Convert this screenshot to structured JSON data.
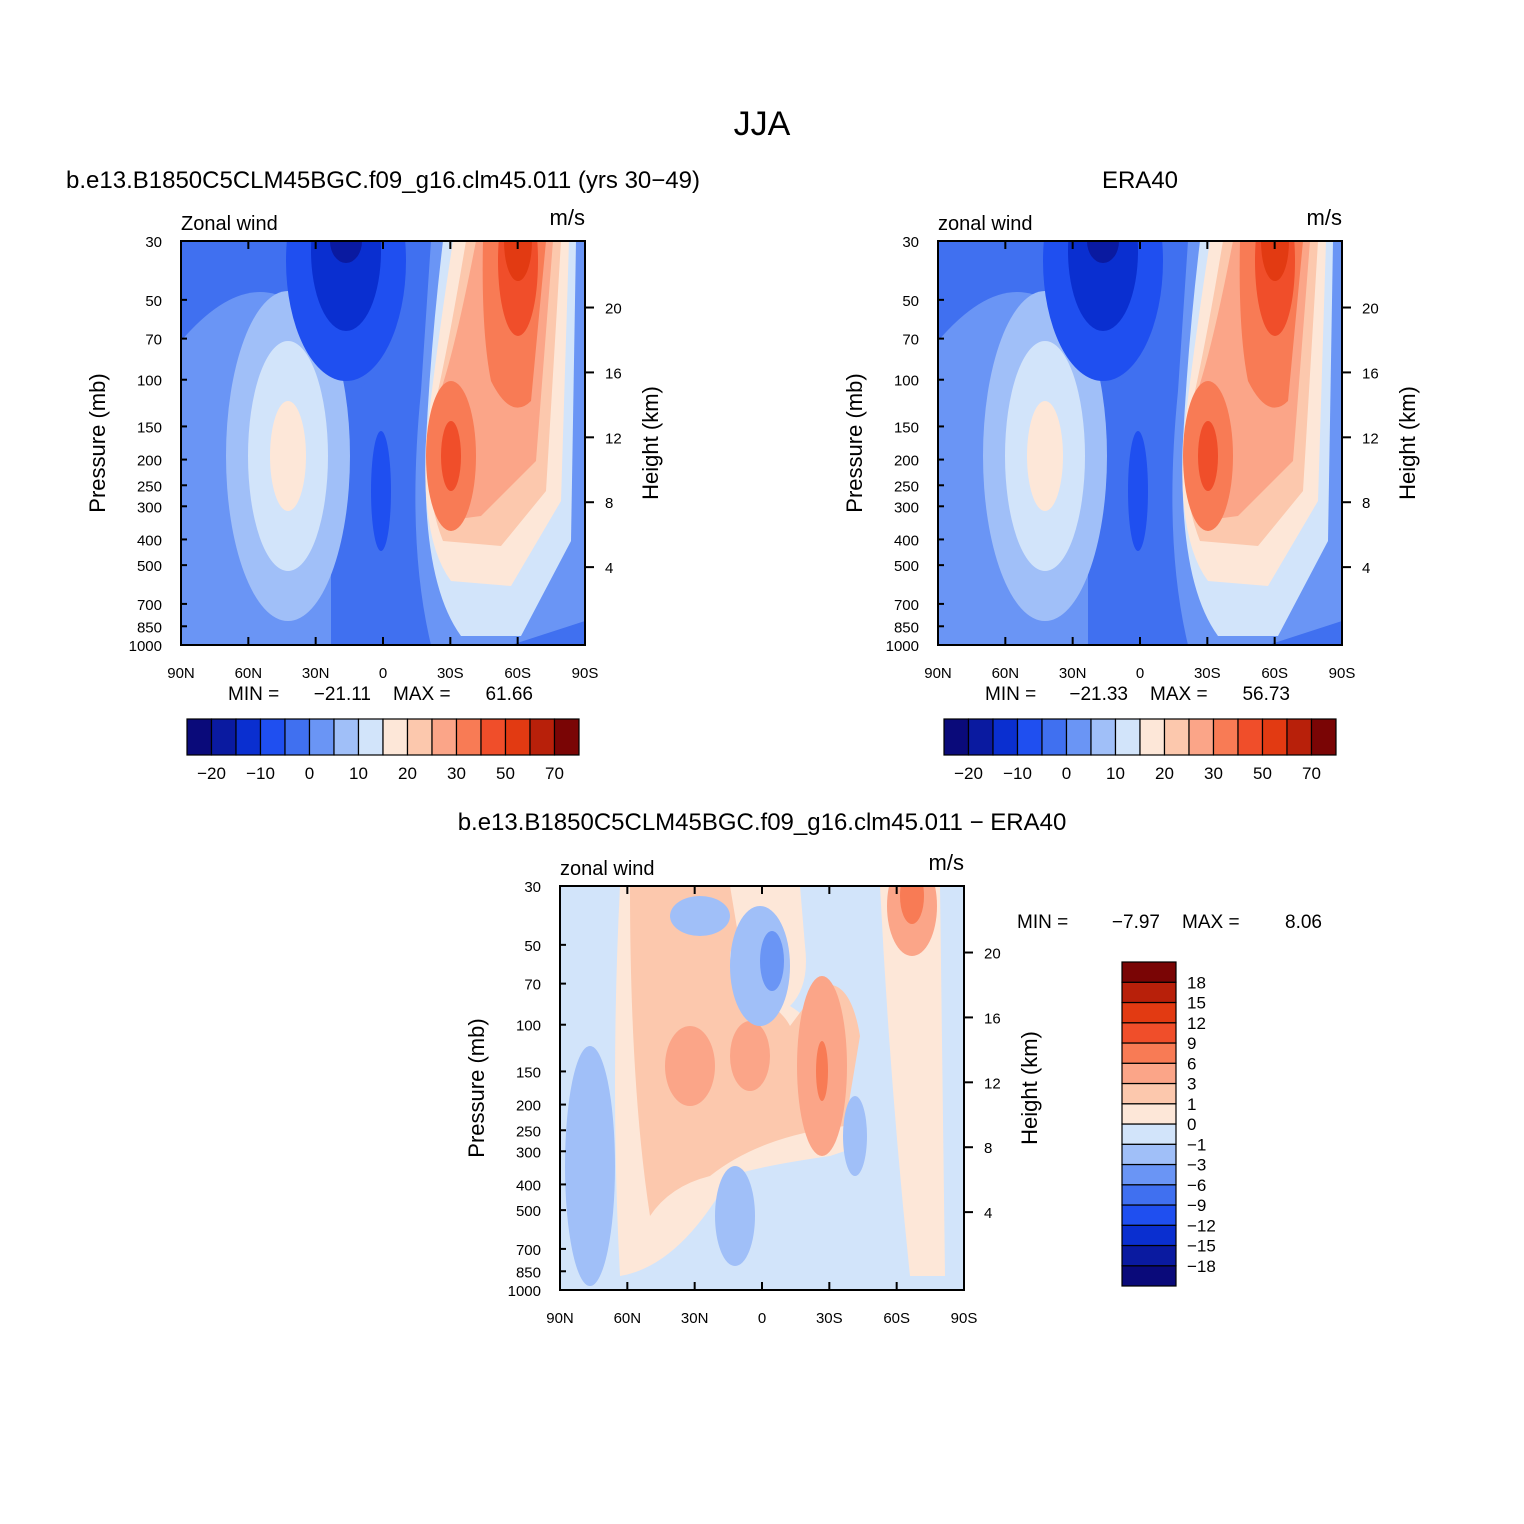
{
  "title": "JJA",
  "chart_data": [
    {
      "type": "contour",
      "title": "b.e13.B1850C5CLM45BGC.f09_g16.clm45.011 (yrs 30−49)",
      "variable": "Zonal wind",
      "units": "m/s",
      "ylabel": "Pressure (mb)",
      "y2label": "Height (km)",
      "xlim": [
        90,
        -90
      ],
      "xticks": [
        {
          "value": 90,
          "label": "90N"
        },
        {
          "value": 60,
          "label": "60N"
        },
        {
          "value": 30,
          "label": "30N"
        },
        0,
        {
          "value": -30,
          "label": "30S"
        },
        {
          "value": -60,
          "label": "60S"
        },
        {
          "value": -90,
          "label": "90S"
        }
      ],
      "ylim": [
        1000,
        30
      ],
      "log_y": true,
      "yticks": [
        30,
        50,
        70,
        100,
        150,
        200,
        250,
        300,
        400,
        500,
        700,
        850,
        1000
      ],
      "y2lim": [
        -0.8,
        24.1
      ],
      "y2ticks": [
        4,
        8,
        12,
        16,
        20
      ],
      "min_label": "MIN =",
      "min": {
        "value": -21.11,
        "label": "−21.11"
      },
      "max_label": "MAX =",
      "max": 61.66,
      "colorbar": {
        "orientation": "horizontal",
        "colors": [
          "#0a0a7a",
          "#0a1aa0",
          "#0a2fd0",
          "#1f4ff0",
          "#4070f0",
          "#6a95f5",
          "#a0bff8",
          "#d2e4fa",
          "#fde7d8",
          "#fcc8ad",
          "#fba588",
          "#f87b55",
          "#f04e2a",
          "#e23a12",
          "#b8200a",
          "#7a0505"
        ],
        "ticks": [
          {
            "value": -20,
            "label": "−20"
          },
          {
            "value": -10,
            "label": "−10"
          },
          0,
          10,
          20,
          30,
          50,
          70
        ]
      }
    },
    {
      "type": "contour",
      "title": "ERA40",
      "variable": "zonal wind",
      "units": "m/s",
      "ylabel": "Pressure (mb)",
      "y2label": "Height (km)",
      "xlim": [
        90,
        -90
      ],
      "xticks": [
        {
          "value": 90,
          "label": "90N"
        },
        {
          "value": 60,
          "label": "60N"
        },
        {
          "value": 30,
          "label": "30N"
        },
        0,
        {
          "value": -30,
          "label": "30S"
        },
        {
          "value": -60,
          "label": "60S"
        },
        {
          "value": -90,
          "label": "90S"
        }
      ],
      "ylim": [
        1000,
        30
      ],
      "log_y": true,
      "yticks": [
        30,
        50,
        70,
        100,
        150,
        200,
        250,
        300,
        400,
        500,
        700,
        850,
        1000
      ],
      "y2lim": [
        -0.8,
        24.1
      ],
      "y2ticks": [
        4,
        8,
        12,
        16,
        20
      ],
      "min_label": "MIN =",
      "min": {
        "value": -21.33,
        "label": "−21.33"
      },
      "max_label": "MAX =",
      "max": 56.73,
      "colorbar": {
        "orientation": "horizontal",
        "colors": [
          "#0a0a7a",
          "#0a1aa0",
          "#0a2fd0",
          "#1f4ff0",
          "#4070f0",
          "#6a95f5",
          "#a0bff8",
          "#d2e4fa",
          "#fde7d8",
          "#fcc8ad",
          "#fba588",
          "#f87b55",
          "#f04e2a",
          "#e23a12",
          "#b8200a",
          "#7a0505"
        ],
        "ticks": [
          {
            "value": -20,
            "label": "−20"
          },
          {
            "value": -10,
            "label": "−10"
          },
          0,
          10,
          20,
          30,
          50,
          70
        ]
      }
    },
    {
      "type": "contour",
      "title": "b.e13.B1850C5CLM45BGC.f09_g16.clm45.011 − ERA40",
      "variable": "zonal wind",
      "units": "m/s",
      "ylabel": "Pressure (mb)",
      "y2label": "Height (km)",
      "xlim": [
        90,
        -90
      ],
      "xticks": [
        {
          "value": 90,
          "label": "90N"
        },
        {
          "value": 60,
          "label": "60N"
        },
        {
          "value": 30,
          "label": "30N"
        },
        0,
        {
          "value": -30,
          "label": "30S"
        },
        {
          "value": -60,
          "label": "60S"
        },
        {
          "value": -90,
          "label": "90S"
        }
      ],
      "ylim": [
        1000,
        30
      ],
      "log_y": true,
      "yticks": [
        30,
        50,
        70,
        100,
        150,
        200,
        250,
        300,
        400,
        500,
        700,
        850,
        1000
      ],
      "y2lim": [
        -0.8,
        24.1
      ],
      "y2ticks": [
        4,
        8,
        12,
        16,
        20
      ],
      "min_label": "MIN =",
      "min": {
        "value": -7.97,
        "label": "−7.97"
      },
      "max_label": "MAX =",
      "max": 8.06,
      "colorbar": {
        "orientation": "vertical",
        "colors": [
          "#0a0a7a",
          "#0a1aa0",
          "#0a2fd0",
          "#1f4ff0",
          "#4070f0",
          "#6a95f5",
          "#a0bff8",
          "#d2e4fa",
          "#fde7d8",
          "#fcc8ad",
          "#fba588",
          "#f87b55",
          "#f04e2a",
          "#e23a12",
          "#b8200a",
          "#7a0505"
        ],
        "ticks": [
          {
            "value": -18,
            "label": "−18"
          },
          {
            "value": -15,
            "label": "−15"
          },
          {
            "value": -12,
            "label": "−12"
          },
          {
            "value": -9,
            "label": "−9"
          },
          {
            "value": -6,
            "label": "−6"
          },
          {
            "value": -3,
            "label": "−3"
          },
          {
            "value": -1,
            "label": "−1"
          },
          0,
          1,
          3,
          6,
          9,
          12,
          15,
          18
        ]
      }
    }
  ]
}
